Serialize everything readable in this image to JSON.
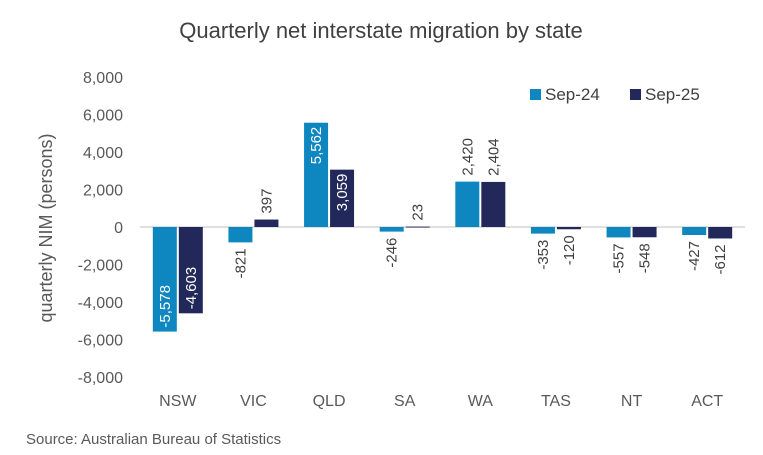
{
  "chart_data": {
    "type": "bar",
    "title": "Quarterly net interstate migration by state",
    "xlabel": "",
    "ylabel": "quarterly NIM (persons)",
    "ylim": [
      -8000,
      8000
    ],
    "yticks": [
      8000,
      6000,
      4000,
      2000,
      0,
      -2000,
      -4000,
      -6000,
      -8000
    ],
    "ytick_labels": [
      "8,000",
      "6,000",
      "4,000",
      "2,000",
      "0",
      "-2,000",
      "-4,000",
      "-6,000",
      "-8,000"
    ],
    "grid": false,
    "legend_position": "top-right",
    "categories": [
      "NSW",
      "VIC",
      "QLD",
      "SA",
      "WA",
      "TAS",
      "NT",
      "ACT"
    ],
    "series": [
      {
        "name": "Sep-24",
        "color": "#0E87C0",
        "values": [
          -5578,
          -821,
          5562,
          -246,
          2420,
          -353,
          -557,
          -427
        ],
        "labels": [
          "-5,578",
          "-821",
          "5,562",
          "-246",
          "2,420",
          "-353",
          "-557",
          "-427"
        ]
      },
      {
        "name": "Sep-25",
        "color": "#22295A",
        "values": [
          -4603,
          397,
          3059,
          23,
          2404,
          -120,
          -548,
          -612
        ],
        "labels": [
          "-4,603",
          "397",
          "3,059",
          "23",
          "2,404",
          "-120",
          "-548",
          "-612"
        ]
      }
    ],
    "source": "Source: Australian Bureau of Statistics"
  }
}
